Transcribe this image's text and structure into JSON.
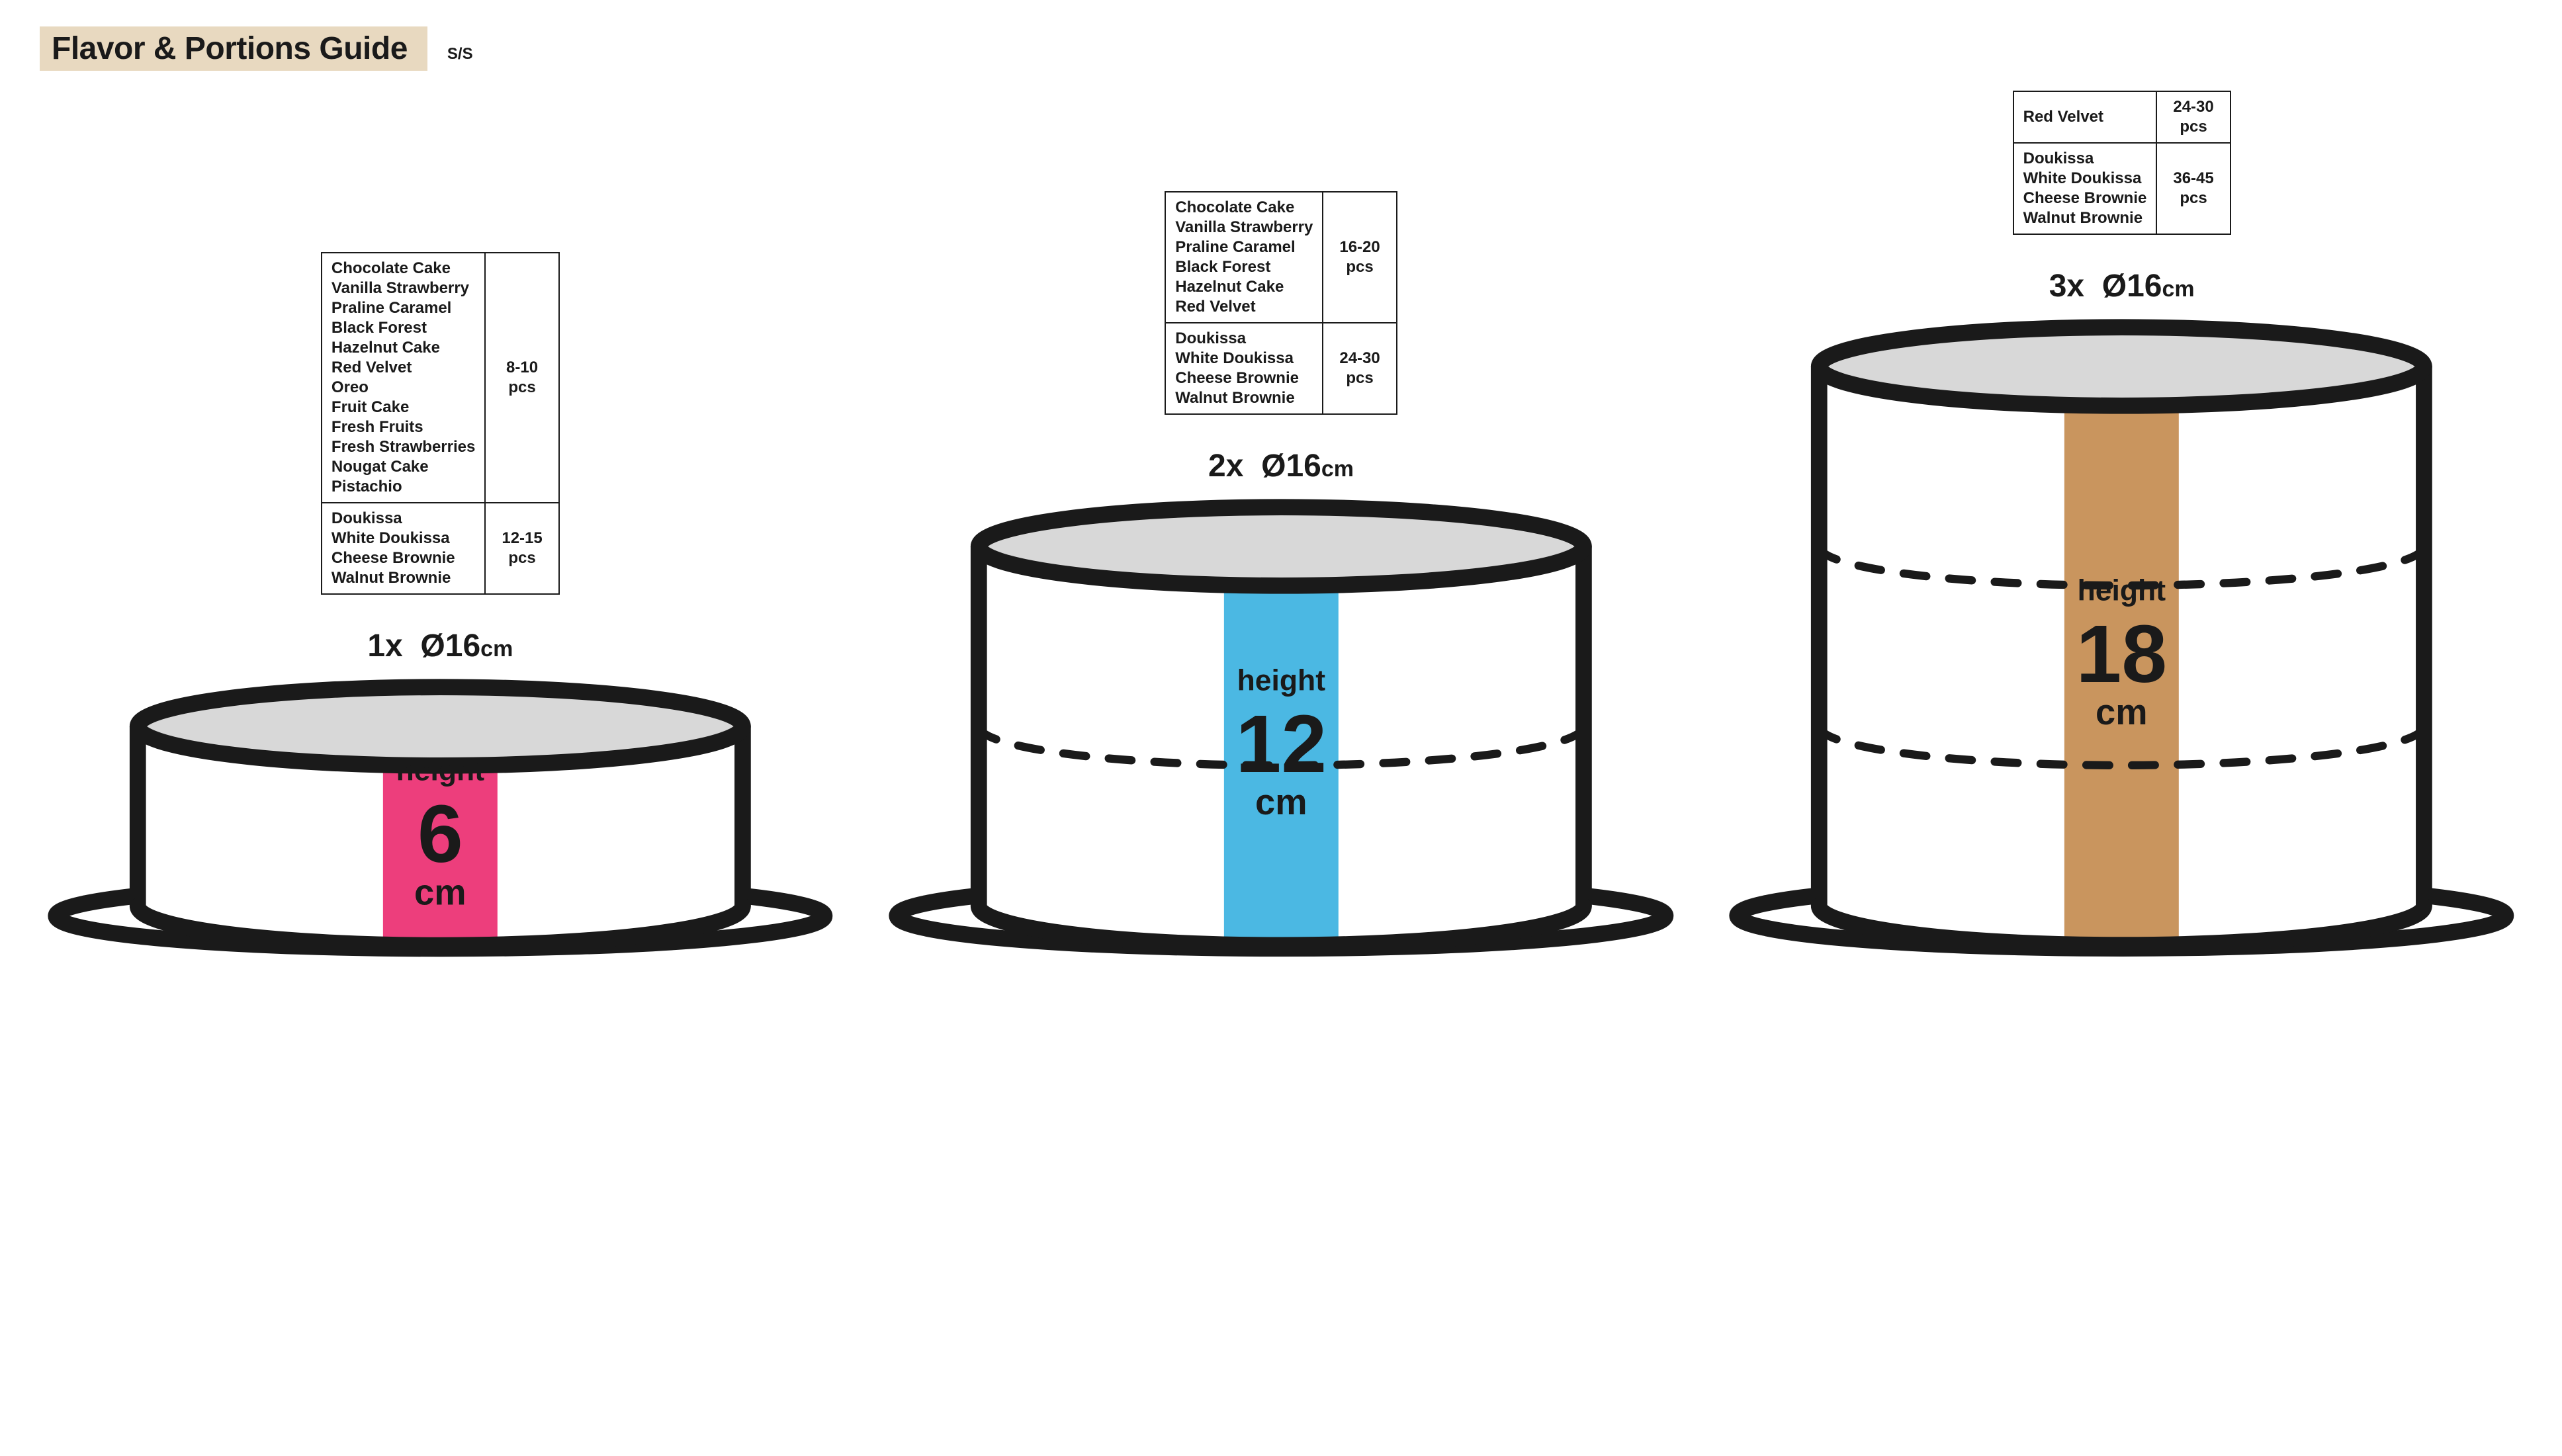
{
  "header": {
    "title": "Flavor & Portions Guide",
    "subtitle": "S/S",
    "title_bg": "#e8d9c0"
  },
  "diameter_label": {
    "prefix_x": [
      "1x",
      "2x",
      "3x"
    ],
    "symbol": "Ø",
    "value": "16",
    "unit": "cm"
  },
  "colors": {
    "stroke": "#1a1a1a",
    "top_fill": "#d8d8d8",
    "plate_fill": "#ffffff",
    "band_1": "#ed3e7c",
    "band_2": "#4bb8e3",
    "band_3": "#c9955e"
  },
  "cakes": [
    {
      "tiers": 1,
      "height_value": "6",
      "height_unit": "cm",
      "height_word": "height",
      "band_color": "#ed3e7c",
      "size_prefix": "1x",
      "portions": [
        {
          "flavors": [
            "Chocolate Cake",
            "Vanilla Strawberry",
            "Praline Caramel",
            "Black Forest",
            "Hazelnut Cake",
            "Red Velvet",
            "Oreo",
            "Fruit Cake",
            "Fresh Fruits",
            "Fresh Strawberries",
            "Nougat Cake",
            "Pistachio"
          ],
          "pcs": "8-10\npcs"
        },
        {
          "flavors": [
            "Doukissa",
            "White Doukissa",
            "Cheese Brownie",
            "Walnut Brownie"
          ],
          "pcs": "12-15\npcs"
        }
      ]
    },
    {
      "tiers": 2,
      "height_value": "12",
      "height_unit": "cm",
      "height_word": "height",
      "band_color": "#4bb8e3",
      "size_prefix": "2x",
      "portions": [
        {
          "flavors": [
            "Chocolate Cake",
            "Vanilla Strawberry",
            "Praline Caramel",
            "Black Forest",
            "Hazelnut Cake",
            "Red Velvet"
          ],
          "pcs": "16-20\npcs"
        },
        {
          "flavors": [
            "Doukissa",
            "White Doukissa",
            "Cheese Brownie",
            "Walnut Brownie"
          ],
          "pcs": "24-30\npcs"
        }
      ]
    },
    {
      "tiers": 3,
      "height_value": "18",
      "height_unit": "cm",
      "height_word": "height",
      "band_color": "#c9955e",
      "size_prefix": "3x",
      "portions": [
        {
          "flavors": [
            "Red Velvet"
          ],
          "pcs": "24-30\npcs"
        },
        {
          "flavors": [
            "Doukissa",
            "White Doukissa",
            "Cheese Brownie",
            "Walnut Brownie"
          ],
          "pcs": "36-45\npcs"
        }
      ]
    }
  ],
  "geometry": {
    "tier_height": 110,
    "cake_width": 370,
    "ellipse_ry": 24,
    "plate_width": 470,
    "plate_ry": 20,
    "stroke_width": 10,
    "dash": "14 14",
    "band_width": 70,
    "font": {
      "height_word": 18,
      "height_value": 50,
      "height_unit": 22,
      "size_label": 48
    }
  }
}
